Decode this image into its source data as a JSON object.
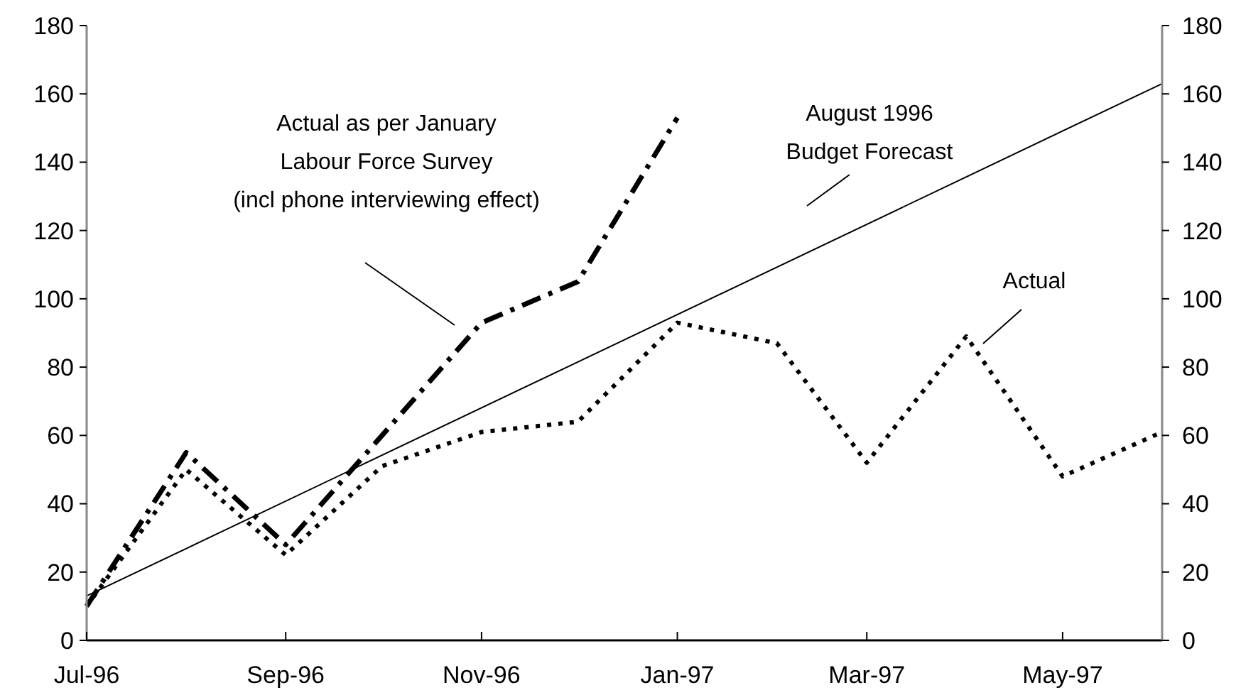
{
  "chart_data": {
    "type": "line",
    "x": [
      "1996-07",
      "1996-08",
      "1996-09",
      "1996-10",
      "1996-11",
      "1996-12",
      "1997-01",
      "1997-02",
      "1997-03",
      "1997-04",
      "1997-05",
      "1997-06"
    ],
    "series": [
      {
        "color": "#000000",
        "line_style": "dotted",
        "values": [
          10,
          50,
          25,
          51,
          61,
          64,
          93,
          87,
          52,
          89,
          48,
          61
        ]
      },
      {
        "color": "#000000",
        "line_style": "dashed",
        "values": [
          10,
          55,
          28,
          60,
          93,
          105,
          153,
          null,
          null,
          null,
          null,
          null
        ]
      },
      {
        "color": "#000000",
        "line_style": "solid",
        "x": [
          "1996-07",
          "1997-06"
        ],
        "values": [
          13,
          163
        ]
      }
    ],
    "xlim": [
      "1996-07",
      "1997-06"
    ],
    "xticks": [
      {
        "value": "1996-07",
        "label": "Jul-96"
      },
      {
        "value": "1996-09",
        "label": "Sep-96"
      },
      {
        "value": "1996-11",
        "label": "Nov-96"
      },
      {
        "value": "1997-01",
        "label": "Jan-97"
      },
      {
        "value": "1997-03",
        "label": "Mar-97"
      },
      {
        "value": "1997-05",
        "label": "May-97"
      }
    ],
    "ylim": [
      0,
      180
    ],
    "yticks": [
      0,
      20,
      40,
      60,
      80,
      100,
      120,
      140,
      160,
      180
    ],
    "y2lim": [
      0,
      180
    ],
    "y2ticks": [
      0,
      20,
      40,
      60,
      80,
      100,
      120,
      140,
      160,
      180
    ],
    "grid": false,
    "marker": "none",
    "annotations": [
      "Actual as per January\nLabour Force Survey\n(incl phone interviewing effect)",
      "August 1996\nBudget Forecast",
      "Actual"
    ]
  }
}
